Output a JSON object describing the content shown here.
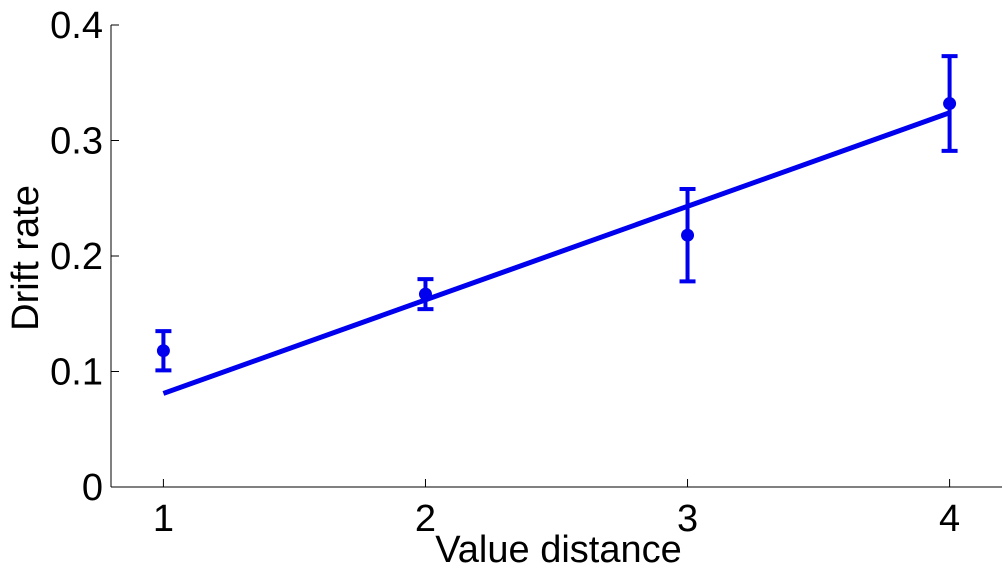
{
  "chart_data": {
    "type": "scatter",
    "title": "",
    "xlabel": "Value distance",
    "ylabel": "Drift rate",
    "xlim": [
      0.8,
      4.2
    ],
    "ylim": [
      0,
      0.4
    ],
    "x_ticks": [
      1,
      2,
      3,
      4
    ],
    "x_tick_labels": [
      "1",
      "2",
      "3",
      "4"
    ],
    "y_ticks": [
      0,
      0.1,
      0.2,
      0.3,
      0.4
    ],
    "y_tick_labels": [
      "0",
      "0.1",
      "0.2",
      "0.3",
      "0.4"
    ],
    "grid": false,
    "legend": "none",
    "color": "#0000ee",
    "series": [
      {
        "type": "errorbar",
        "x": [
          1,
          2,
          3,
          4
        ],
        "y": [
          0.118,
          0.167,
          0.218,
          0.332
        ],
        "y_lower": [
          0.101,
          0.154,
          0.178,
          0.291
        ],
        "y_upper": [
          0.135,
          0.18,
          0.258,
          0.373
        ]
      },
      {
        "type": "line",
        "x": [
          1,
          4
        ],
        "y": [
          0.081,
          0.324
        ]
      }
    ]
  }
}
